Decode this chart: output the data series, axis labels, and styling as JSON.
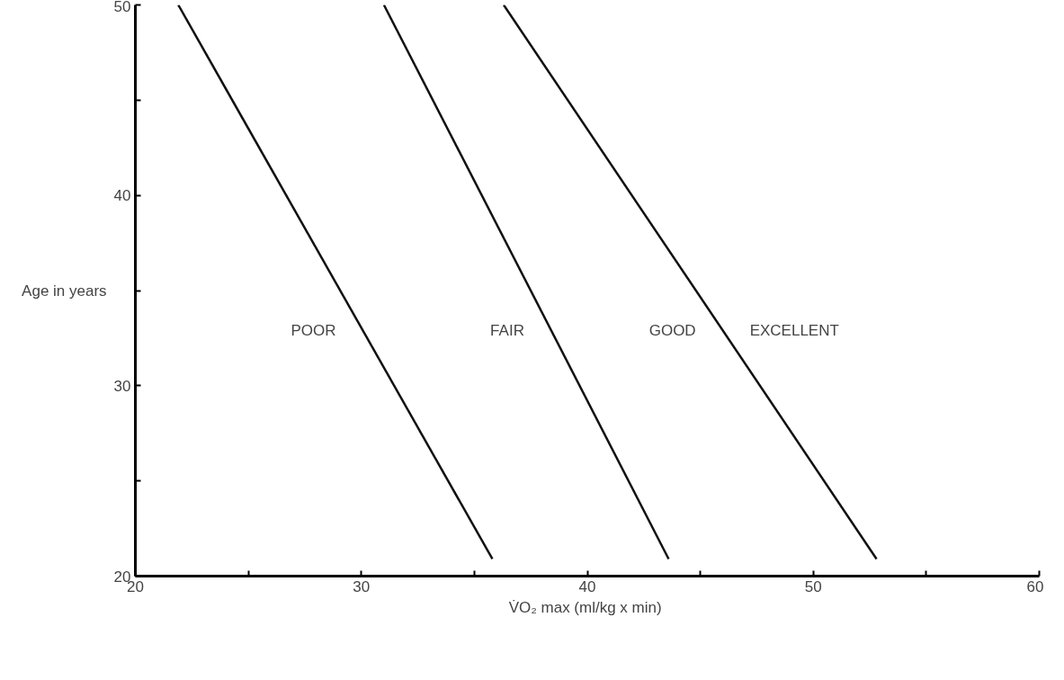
{
  "chart_data": {
    "type": "line",
    "xlabel": "V̇O₂ max  (ml/kg x min)",
    "ylabel": "Age in years",
    "xlim": [
      20,
      60
    ],
    "ylim": [
      20,
      50
    ],
    "xticks": [
      20,
      {
        "value": 25,
        "label": null
      },
      30,
      {
        "value": 35,
        "label": null
      },
      40,
      {
        "value": 45,
        "label": null
      },
      50,
      {
        "value": 55,
        "label": null
      },
      60
    ],
    "yticks": [
      20,
      {
        "value": 25,
        "label": null
      },
      30,
      {
        "value": 35,
        "label": null
      },
      40,
      {
        "value": 45,
        "label": null
      },
      50
    ],
    "series": [
      {
        "color": "#111111",
        "x": [
          21.9,
          35.8
        ],
        "values": [
          50,
          20.9
        ]
      },
      {
        "color": "#111111",
        "x": [
          31.0,
          43.6
        ],
        "values": [
          50,
          20.9
        ]
      },
      {
        "color": "#111111",
        "x": [
          36.3,
          52.8
        ],
        "values": [
          50,
          20.9
        ]
      }
    ],
    "annotations": [
      "POOR",
      "FAIR",
      "GOOD",
      "EXCELLENT"
    ],
    "grid": false,
    "marker": "none",
    "line_style": "solid"
  }
}
